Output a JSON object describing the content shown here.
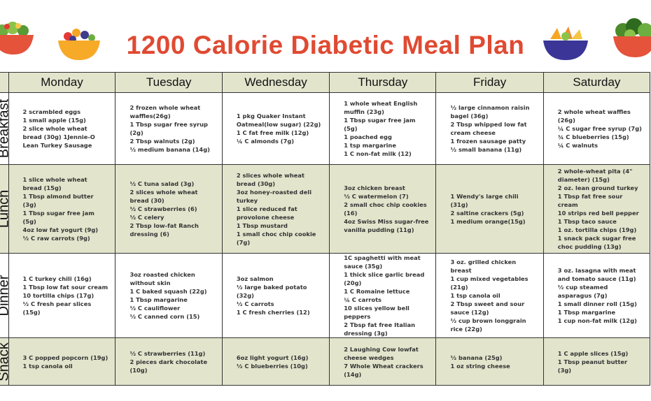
{
  "title": "1200 Calorie Diabetic Meal Plan",
  "colors": {
    "title": "#e04a32",
    "shaded_row": "#e2e5cc"
  },
  "days": [
    "Monday",
    "Tuesday",
    "Wednesday",
    "Thursday",
    "Friday",
    "Saturday"
  ],
  "meals": [
    {
      "label": "Breakfast",
      "items": [
        "2 scrambled eggs\n1 small apple (15g)\n2 slice whole wheat bread (30g) 1Jennie-O Lean Turkey Sausage",
        "2 frozen whole wheat waffles(26g)\n1 Tbsp sugar free syrup (2g)\n2 Tbsp walnuts (2g)\n½ medium banana (14g)",
        "1 pkg Quaker Instant Oatmeal(low sugar) (22g)\n1 C fat free milk (12g)\n¼ C almonds (7g)",
        "1 whole wheat English muffin (23g)\n1 Tbsp sugar free jam (5g)\n1 poached egg\n1 tsp margarine\n1 C non-fat milk (12)",
        "½ large cinnamon raisin bagel (36g)\n2 Tbsp whipped low fat cream cheese\n1 frozen sausage patty\n½ small banana (11g)",
        "2 whole wheat waffles (26g)\n¼ C sugar free syrup (7g)\n¾ C blueberries (15g)\n¼ C walnuts"
      ]
    },
    {
      "label": "Lunch",
      "items": [
        "1 slice whole wheat bread (15g)\n1 Tbsp almond butter (3g)\n1 Tbsp sugar free jam (5g)\n4oz low fat yogurt (9g)\n½ C raw carrots (9g)",
        "½ C tuna salad (3g)\n2 slices whole wheat bread (30)\n½ C strawberries (6)\n½ C celery\n2 Tbsp low-fat Ranch dressing (6)",
        "2 slices whole wheat bread (30g)\n3oz honey-roasted deli turkey\n1 slice reduced fat provolone cheese\n1 Tbsp mustard\n1 small choc chip cookie (7g)",
        "3oz chicken breast\n½ C watermelon (7)\n2 small choc chip cookies (16)\n4oz Swiss Miss sugar-free vanilla pudding (11g)",
        "1 Wendy's large chili (31g)\n2 saltine crackers (5g)\n1 medium orange(15g)",
        "2 whole-wheat pita (4\" diameter) (15g)\n2 oz. lean ground turkey\n1 Tbsp fat free sour cream\n10 strips red bell pepper\n1 Tbsp taco sauce\n1 oz. tortilla chips (19g)\n1 snack pack sugar free choc pudding (13g)"
      ]
    },
    {
      "label": "Dinner",
      "items": [
        "1 C turkey chili (16g)\n1 Tbsp low fat sour cream\n10 tortilla chips (17g)\n½ C fresh pear slices (15g)",
        "3oz roasted chicken without skin\n1 C baked squash (22g)\n1 Tbsp margarine\n½ C cauliflower\n½ C canned corn (15)",
        "3oz salmon\n½ large baked potato (32g)\n½ C carrots\n1 C fresh cherries (12)",
        "1C spaghetti with meat sauce (35g)\n1 thick slice garlic bread (20g)\n1 C Romaine lettuce\n¼ C carrots\n10 slices yellow bell peppers\n2 Tbsp fat free Italian dressing (3g)",
        "3 oz. grilled chicken breast\n1 cup mixed vegetables (21g)\n1 tsp canola oil\n2 Tbsp sweet and sour sauce (12g)\n½ cup brown longgrain rice (22g)",
        "3 oz. lasagna with meat and tomato sauce (11g)\n½ cup steamed asparagus (7g)\n1 small dinner roll (15g)\n1 Tbsp margarine\n1 cup non-fat milk (12g)"
      ]
    },
    {
      "label": "Snack",
      "items": [
        "3 C popped popcorn (19g)\n1 tsp canola oil",
        "½ C strawberries (11g)\n2 pieces dark chocolate (10g)",
        "6oz light yogurt (16g)\n½ C blueberries (10g)",
        "2 Laughing Cow lowfat cheese wedges\n7 Whole Wheat crackers (14g)",
        "½ banana (25g)\n1 oz string cheese",
        "1 C apple slices (15g)\n1 Tbsp peanut butter (3g)"
      ]
    }
  ]
}
